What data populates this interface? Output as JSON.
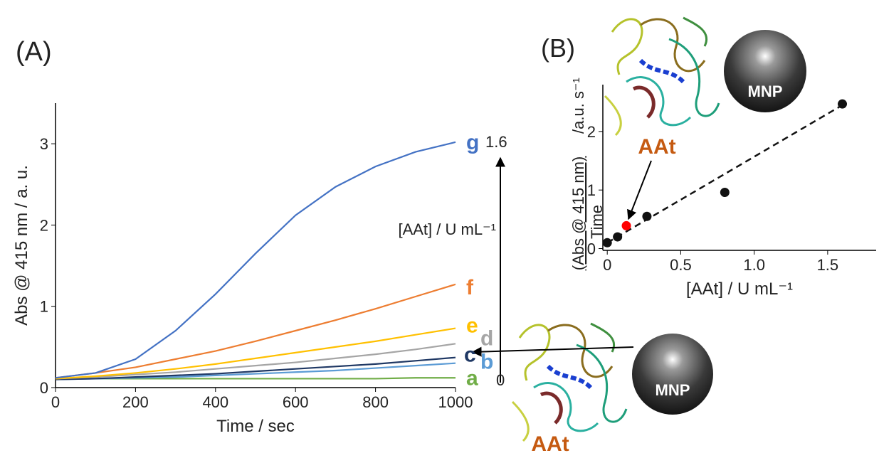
{
  "panel_labels": [
    "(A)",
    "(B)"
  ],
  "chart_data": [
    {
      "type": "line",
      "x_label": "Time / sec",
      "y_label": "Abs @ 415 nm / a. u.",
      "x": [
        0,
        100,
        200,
        300,
        400,
        500,
        600,
        700,
        800,
        900,
        1000
      ],
      "series": [
        {
          "name": "a",
          "color": "#70ad47",
          "values": [
            0.11,
            0.11,
            0.11,
            0.11,
            0.11,
            0.11,
            0.11,
            0.11,
            0.11,
            0.12,
            0.12
          ]
        },
        {
          "name": "b",
          "color": "#5b9bd5",
          "values": [
            0.1,
            0.11,
            0.12,
            0.13,
            0.15,
            0.17,
            0.19,
            0.21,
            0.24,
            0.27,
            0.3
          ]
        },
        {
          "name": "c",
          "color": "#1f3864",
          "values": [
            0.1,
            0.11,
            0.13,
            0.15,
            0.17,
            0.2,
            0.23,
            0.26,
            0.29,
            0.33,
            0.37
          ]
        },
        {
          "name": "d",
          "color": "#a5a5a5",
          "values": [
            0.11,
            0.13,
            0.16,
            0.19,
            0.23,
            0.27,
            0.31,
            0.36,
            0.41,
            0.47,
            0.54
          ]
        },
        {
          "name": "e",
          "color": "#ffc000",
          "values": [
            0.11,
            0.14,
            0.18,
            0.23,
            0.29,
            0.36,
            0.43,
            0.5,
            0.57,
            0.65,
            0.73
          ]
        },
        {
          "name": "f",
          "color": "#ed7d31",
          "values": [
            0.12,
            0.18,
            0.25,
            0.35,
            0.45,
            0.57,
            0.7,
            0.83,
            0.97,
            1.12,
            1.27
          ]
        },
        {
          "name": "g",
          "color": "#4472c4",
          "values": [
            0.12,
            0.18,
            0.35,
            0.7,
            1.15,
            1.65,
            2.12,
            2.47,
            2.72,
            2.9,
            3.02
          ]
        }
      ],
      "xlim": [
        0,
        1000
      ],
      "ylim": [
        0,
        3.5
      ],
      "xticks": [
        0,
        200,
        400,
        600,
        800,
        1000
      ],
      "yticks": [
        0,
        1,
        2,
        3
      ]
    },
    {
      "type": "scatter",
      "x_label": "[AAt] / U mL⁻¹",
      "y_label": {
        "numerator": "(Abs @ 415 nm)",
        "denominator": "Time",
        "unit": "/a.u. s⁻¹"
      },
      "x": [
        0,
        0.07,
        0.13,
        0.27,
        0.8,
        1.6
      ],
      "values": [
        0.1,
        0.2,
        0.39,
        0.55,
        0.96,
        2.47
      ],
      "colors": [
        "#111111",
        "#111111",
        "#ff0000",
        "#111111",
        "#111111",
        "#111111"
      ],
      "trend_line": {
        "x": [
          0,
          1.6
        ],
        "values": [
          0.1,
          2.45
        ],
        "color": "#111111",
        "style": "dashed"
      },
      "xlim": [
        -0.03,
        1.83
      ],
      "ylim": [
        -0.03,
        2.8
      ],
      "xticks": [
        0,
        0.5,
        {
          "value": 1,
          "label": "1.0"
        },
        1.5
      ],
      "yticks": [
        0,
        1,
        2
      ]
    }
  ],
  "annotations": {
    "arrow_top": "1.6",
    "arrow_bottom": "0",
    "arrow_label": "[AAt] / U mL⁻¹"
  },
  "illustration": {
    "particle": [
      "MNP",
      "MNP"
    ],
    "enzyme": [
      "AAt",
      "AAt"
    ]
  }
}
